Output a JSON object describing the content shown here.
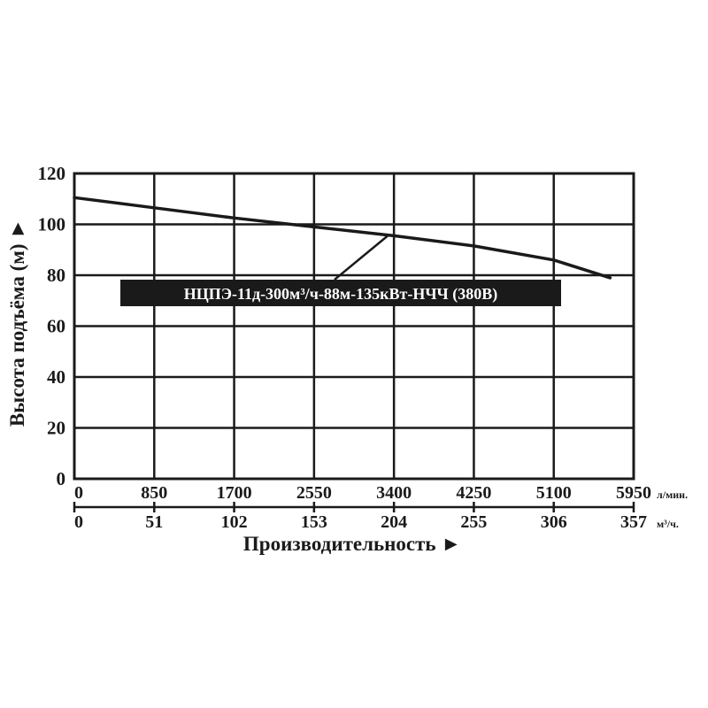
{
  "chart_data": {
    "type": "line",
    "title": "",
    "ylabel": "Высота подъёма (м) ►",
    "xlabel": "Производительность ►",
    "ylim": [
      0,
      120
    ],
    "yticks": [
      0,
      20,
      40,
      60,
      80,
      100,
      120
    ],
    "x_primary": {
      "unit": "л/мин.",
      "ticks": [
        "0",
        "850",
        "1700",
        "2550",
        "3400",
        "4250",
        "5100",
        "5950"
      ],
      "range": [
        0,
        5950
      ]
    },
    "x_secondary": {
      "unit": "м³/ч.",
      "ticks": [
        "0",
        "51",
        "102",
        "153",
        "204",
        "255",
        "306",
        "357"
      ]
    },
    "grid": true,
    "series": [
      {
        "name": "НЦПЭ-11д-300м³/ч-88м-135кВт-НЧЧ (380В)",
        "x_unit": "л/мин.",
        "x": [
          0,
          850,
          1700,
          2550,
          3400,
          4250,
          5100,
          5700
        ],
        "y": [
          110.5,
          106.5,
          102.5,
          99,
          95.5,
          91.5,
          86,
          79
        ]
      }
    ],
    "annotation": {
      "text": "НЦПЭ-11д-300м³/ч-88м-135кВт-НЧЧ (380В)",
      "points_to": {
        "x": 3350,
        "y": 96
      }
    }
  }
}
